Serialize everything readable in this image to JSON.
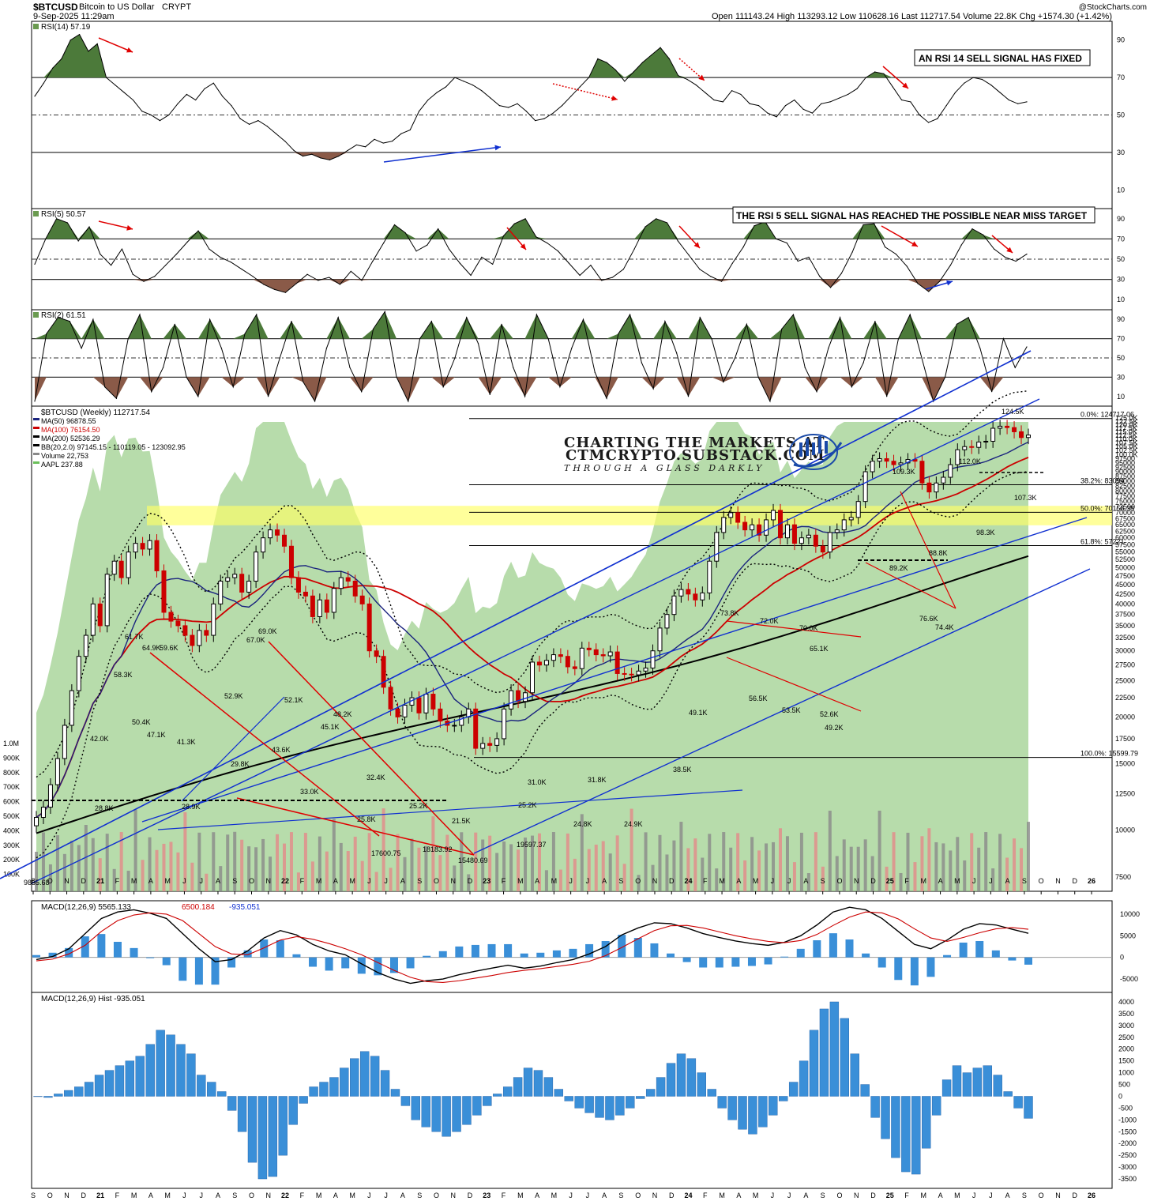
{
  "header": {
    "symbol": "$BTCUSD",
    "name": "Bitcoin to US Dollar",
    "exchange": "CRYPT",
    "datetime": "9-Sep-2025 11:29am",
    "ohlc": "Open 111143.24  High 113293.12  Low 110628.16  Last 112717.54  Volume 22.8K  Chg +1574.30 (+1.42%)",
    "source": "@StockCharts.com"
  },
  "notes": {
    "rsi14": "AN RSI 14 SELL SIGNAL HAS FIXED",
    "rsi5": "THE RSI 5 SELL SIGNAL HAS REACHED THE POSSIBLE NEAR MISS TARGET"
  },
  "watermark": {
    "line1": "CHARTING THE MARKETS AT",
    "line2": "CTMCRYPTO.SUBSTACK.COM",
    "line3": "THROUGH A GLASS DARKLY"
  },
  "colors": {
    "candle_up": "#000000",
    "candle_down": "#cc0000",
    "rsi_ob": "#4c7a3a",
    "rsi_os": "#8a5a48",
    "volume_area": "#9fd08f",
    "ma50": "#1a237e",
    "ma100": "#cc0000",
    "ma200": "#000000",
    "trend_blue": "#1030d0",
    "trend_red": "#e00000",
    "zone_yellow": "#ffff66",
    "hist_blue": "#3a8fd8"
  },
  "chart_data": [
    {
      "type": "line",
      "panel": "RSI(14)",
      "legend": "RSI(14) 57.19",
      "last": 57.19,
      "y_ticks": [
        10,
        30,
        50,
        70,
        90
      ],
      "ylim": [
        0,
        100
      ],
      "values": [
        60,
        67,
        75,
        80,
        90,
        93,
        84,
        88,
        70,
        66,
        62,
        58,
        52,
        50,
        47,
        50,
        56,
        61,
        58,
        64,
        67,
        60,
        55,
        48,
        45,
        47,
        44,
        40,
        36,
        31,
        28,
        29,
        27,
        26,
        28,
        31,
        34,
        33,
        37,
        35,
        36,
        40,
        42,
        52,
        58,
        62,
        65,
        70,
        68,
        66,
        63,
        59,
        55,
        54,
        56,
        52,
        47,
        48,
        51,
        55,
        60,
        65,
        70,
        80,
        78,
        74,
        68,
        73,
        78,
        82,
        86,
        80,
        71,
        69,
        66,
        62,
        58,
        57,
        63,
        61,
        56,
        55,
        51,
        49,
        55,
        58,
        53,
        51,
        56,
        57,
        59,
        61,
        64,
        70,
        73,
        72,
        65,
        58,
        57,
        50,
        46,
        48,
        55,
        62,
        67,
        70,
        69,
        66,
        62,
        58,
        56,
        57
      ]
    },
    {
      "type": "line",
      "panel": "RSI(5)",
      "legend": "RSI(5) 50.57",
      "last": 50.57,
      "y_ticks": [
        10,
        30,
        50,
        70,
        90
      ],
      "ylim": [
        0,
        100
      ],
      "values": [
        45,
        70,
        90,
        86,
        68,
        82,
        55,
        44,
        60,
        35,
        28,
        33,
        44,
        55,
        67,
        78,
        60,
        52,
        47,
        40,
        33,
        25,
        20,
        17,
        26,
        35,
        29,
        32,
        25,
        38,
        29,
        48,
        66,
        84,
        76,
        58,
        64,
        80,
        60,
        46,
        34,
        52,
        45,
        73,
        85,
        90,
        72,
        66,
        58,
        46,
        34,
        44,
        29,
        32,
        40,
        60,
        82,
        90,
        86,
        68,
        54,
        40,
        33,
        28,
        46,
        62,
        83,
        87,
        70,
        66,
        48,
        52,
        33,
        22,
        36,
        57,
        84,
        85,
        62,
        55,
        43,
        26,
        18,
        28,
        44,
        64,
        80,
        74,
        60,
        52,
        48,
        55
      ]
    },
    {
      "type": "line",
      "panel": "RSI(2)",
      "legend": "RSI(2) 61.51",
      "last": 61.51,
      "y_ticks": [
        10,
        30,
        50,
        70,
        90
      ],
      "ylim": [
        0,
        100
      ],
      "values": [
        5,
        75,
        92,
        88,
        60,
        90,
        20,
        8,
        70,
        95,
        15,
        40,
        85,
        30,
        10,
        90,
        60,
        20,
        75,
        95,
        10,
        50,
        88,
        25,
        5,
        60,
        92,
        40,
        15,
        80,
        98,
        30,
        5,
        70,
        88,
        20,
        50,
        92,
        65,
        12,
        85,
        40,
        10,
        95,
        70,
        20,
        60,
        90,
        35,
        8,
        75,
        95,
        45,
        18,
        88,
        55,
        10,
        92,
        70,
        25,
        50,
        85,
        30,
        5,
        80,
        95,
        40,
        15,
        60,
        92,
        20,
        45,
        88,
        10,
        70,
        95,
        50,
        5,
        30,
        85,
        92,
        60,
        15,
        70,
        40,
        61.51
      ]
    },
    {
      "type": "line",
      "panel": "price",
      "title": "$BTCUSD (Weekly) 112717.54",
      "scale": "log",
      "legend": [
        "MA(50) 96878.55",
        "MA(100) 76154.50",
        "MA(200) 52536.29",
        "BB(20,2.0) 97145.15 - 110119.05 - 123092.95",
        "Volume 22,753",
        "AAPL 237.88"
      ],
      "x_labels": [
        "S",
        "O",
        "N",
        "D",
        "21",
        "F",
        "M",
        "A",
        "M",
        "J",
        "J",
        "A",
        "S",
        "O",
        "N",
        "22",
        "F",
        "M",
        "A",
        "M",
        "J",
        "J",
        "A",
        "S",
        "O",
        "N",
        "D",
        "23",
        "F",
        "M",
        "A",
        "M",
        "J",
        "J",
        "A",
        "S",
        "O",
        "N",
        "D",
        "24",
        "F",
        "M",
        "A",
        "M",
        "J",
        "J",
        "A",
        "S",
        "O",
        "N",
        "D",
        "25",
        "F",
        "M",
        "A",
        "M",
        "J",
        "J",
        "A",
        "S",
        "O",
        "N",
        "D",
        "26"
      ],
      "y_ticks": [
        "125.0K",
        "122.5K",
        "120.0K",
        "117.5K",
        "115.0K",
        "112.5K",
        "110.0K",
        "107.5K",
        "105.0K",
        "102.5K",
        "100.0K",
        "97500",
        "95000",
        "92500",
        "90000",
        "87500",
        "85000",
        "82500",
        "80000",
        "77500",
        "75000",
        "72500",
        "70000",
        "67500",
        "65000",
        "62500",
        "60000",
        "57500",
        "55000",
        "52500",
        "50000",
        "47500",
        "45000",
        "42500",
        "40000",
        "37500",
        "35000",
        "32500",
        "30000",
        "27500",
        "25000",
        "22500",
        "20000",
        "17500",
        "15000",
        "12500",
        "10000",
        "7500"
      ],
      "volume_ticks": [
        "1.0M",
        "900K",
        "800K",
        "700K",
        "600K",
        "500K",
        "400K",
        "300K",
        "200K",
        "100K"
      ],
      "fib_levels": [
        {
          "label": "0.0%: 124717.06"
        },
        {
          "label": "38.2%: 83094"
        },
        {
          "label": "50.0%: 70158.38"
        },
        {
          "label": "61.8%: 57221"
        },
        {
          "label": "100.0%: 15599.79"
        }
      ],
      "annotations": [
        "9855.68",
        "28.8K",
        "42.0K",
        "58.3K",
        "50.4K",
        "61.7K",
        "64.9K",
        "59.6K",
        "47.1K",
        "41.3K",
        "28.9K",
        "52.9K",
        "29.8K",
        "67.0K",
        "69.0K",
        "52.1K",
        "43.6K",
        "45.1K",
        "48.2K",
        "33.0K",
        "32.4K",
        "25.8K",
        "17600.75",
        "25.2K",
        "21.5K",
        "18183.92",
        "15480.69",
        "25.2K",
        "31.0K",
        "19597.37",
        "31.8K",
        "24.8K",
        "24.9K",
        "38.5K",
        "49.1K",
        "73.8K",
        "72.0K",
        "70.0K",
        "56.5K",
        "65.1K",
        "53.5K",
        "49.2K",
        "52.6K",
        "109.3K",
        "89.2K",
        "88.8K",
        "76.6K",
        "74.4K",
        "112.0K",
        "98.3K",
        "124.5K",
        "107.3K"
      ],
      "weekly_close": [
        10800,
        11500,
        13200,
        15500,
        19000,
        23500,
        29000,
        33000,
        40000,
        35000,
        48000,
        52000,
        47000,
        55000,
        58000,
        56000,
        59000,
        49000,
        38000,
        36000,
        35000,
        33000,
        31000,
        34000,
        33000,
        40000,
        46000,
        47000,
        48000,
        43000,
        46000,
        55000,
        60000,
        63000,
        61000,
        57000,
        47000,
        43000,
        42000,
        37000,
        41000,
        38000,
        44000,
        47000,
        46000,
        42000,
        40000,
        30000,
        29000,
        24000,
        21000,
        20000,
        21500,
        22500,
        20500,
        23000,
        21000,
        19500,
        19000,
        19000,
        20000,
        21000,
        16500,
        17000,
        16800,
        17500,
        21000,
        23500,
        22000,
        23200,
        28000,
        27500,
        28300,
        29300,
        29000,
        27200,
        26900,
        30500,
        30200,
        29300,
        29100,
        29800,
        26100,
        26000,
        25900,
        26500,
        27000,
        30000,
        34500,
        37500,
        42000,
        43700,
        42500,
        41000,
        42800,
        52000,
        62000,
        68000,
        70000,
        66000,
        63000,
        65000,
        61000,
        67000,
        71000,
        60000,
        65000,
        58000,
        60000,
        61000,
        57000,
        55000,
        62000,
        63000,
        67000,
        68000,
        75000,
        90000,
        96000,
        97500,
        96000,
        94000,
        95000,
        97000,
        96000,
        84000,
        79500,
        84000,
        87000,
        94000,
        103000,
        105000,
        104500,
        108000,
        108500,
        117500,
        119000,
        118000,
        115000,
        111000,
        112717
      ]
    },
    {
      "type": "line",
      "panel": "MACD",
      "legend": [
        "MACD(12,26,9) 5565.133",
        "6500.184",
        "-935.051"
      ],
      "y_ticks": [
        10000,
        5000,
        0,
        -5000
      ],
      "ylim": [
        -7000,
        12000
      ],
      "series": [
        {
          "name": "MACD(12,26,9) 5565.133",
          "values": [
            -500,
            200,
            2000,
            5500,
            9000,
            10500,
            11000,
            10200,
            9000,
            5500,
            2000,
            -1000,
            -500,
            1500,
            4500,
            6200,
            5200,
            3000,
            1500,
            600,
            -1500,
            -3500,
            -5000,
            -6000,
            -5400,
            -5000,
            -4000,
            -3200,
            -2500,
            -1800,
            -2500,
            -2000,
            -1200,
            -500,
            800,
            2500,
            5200,
            6800,
            8000,
            7800,
            6800,
            5500,
            4600,
            3800,
            3200,
            2800,
            3500,
            5000,
            7500,
            10500,
            11600,
            11000,
            9000,
            6000,
            3000,
            2000,
            4000,
            6500,
            7800,
            7500,
            6500,
            5565
          ]
        },
        {
          "name": "6500.184",
          "values": [
            -800,
            -400,
            800,
            2800,
            6000,
            8500,
            9800,
            10300,
            10000,
            8500,
            5500,
            2500,
            800,
            600,
            2200,
            4000,
            4800,
            4200,
            3200,
            2000,
            600,
            -1200,
            -3000,
            -4600,
            -5600,
            -5800,
            -5400,
            -4800,
            -4200,
            -3500,
            -3000,
            -2600,
            -2100,
            -1600,
            -900,
            400,
            2300,
            4300,
            6200,
            7300,
            7400,
            6800,
            5900,
            5000,
            4300,
            3700,
            3400,
            3900,
            5300,
            7400,
            9300,
            10500,
            10300,
            8900,
            6600,
            4500,
            3700,
            4600,
            5700,
            6600,
            6900,
            6500
          ]
        }
      ]
    },
    {
      "type": "bar",
      "panel": "MACD Histogram",
      "legend": "MACD(12,26,9) Hist -935.051",
      "y_ticks": [
        4000,
        3500,
        3000,
        2500,
        2000,
        1500,
        1000,
        500,
        0,
        -500,
        -1000,
        -1500,
        -2000,
        -2500,
        -3000,
        -3500
      ],
      "ylim": [
        -3700,
        4200
      ],
      "values": [
        0,
        -50,
        100,
        250,
        400,
        600,
        900,
        1100,
        1300,
        1500,
        1700,
        2200,
        2800,
        2600,
        2200,
        1800,
        900,
        600,
        200,
        -600,
        -1500,
        -2800,
        -3500,
        -3400,
        -2500,
        -1200,
        -300,
        400,
        600,
        800,
        1200,
        1600,
        1900,
        1700,
        1100,
        300,
        -400,
        -1000,
        -1300,
        -1500,
        -1700,
        -1500,
        -1200,
        -800,
        -400,
        100,
        400,
        800,
        1200,
        1100,
        800,
        300,
        -200,
        -500,
        -700,
        -900,
        -1000,
        -800,
        -500,
        -100,
        300,
        800,
        1400,
        1800,
        1600,
        1000,
        300,
        -500,
        -1000,
        -1400,
        -1600,
        -1300,
        -800,
        -200,
        600,
        1500,
        2800,
        3700,
        4000,
        3300,
        1800,
        500,
        -900,
        -1800,
        -2600,
        -3200,
        -3300,
        -2200,
        -800,
        700,
        1300,
        1000,
        1200,
        1300,
        900,
        200,
        -500,
        -935
      ]
    }
  ]
}
